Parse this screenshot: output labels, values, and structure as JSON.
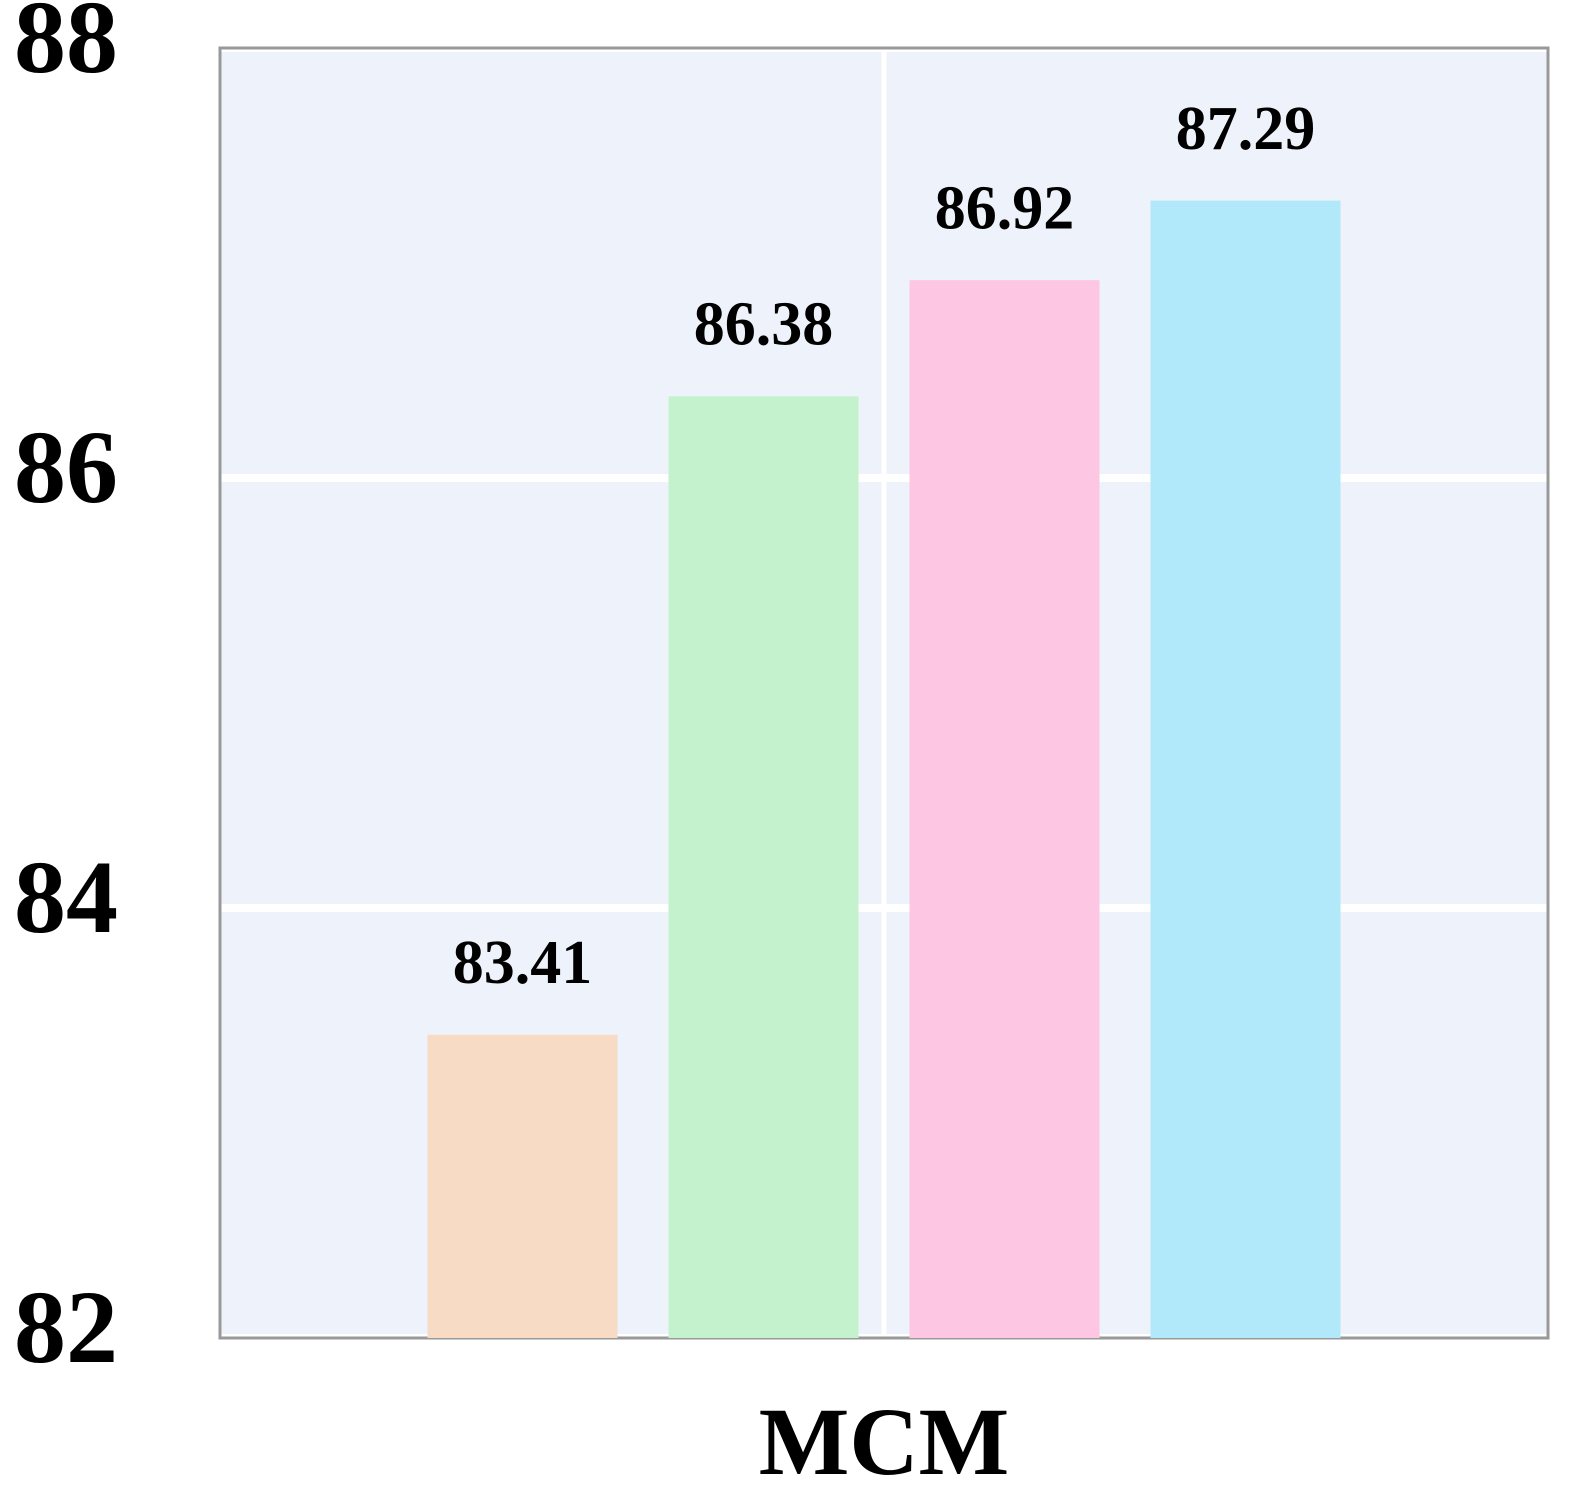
{
  "chart_data": {
    "type": "bar",
    "categories": [
      "MCM"
    ],
    "series": [
      {
        "color": "#f8dbc5",
        "values": [
          83.41
        ]
      },
      {
        "color": "#c3f2cd",
        "values": [
          86.38
        ]
      },
      {
        "color": "#fdc6e2",
        "values": [
          86.92
        ]
      },
      {
        "color": "#b1e9fb",
        "values": [
          87.29
        ]
      }
    ],
    "ylim": [
      82,
      88
    ],
    "yticks": [
      82,
      84,
      86,
      88
    ],
    "grid": true
  }
}
